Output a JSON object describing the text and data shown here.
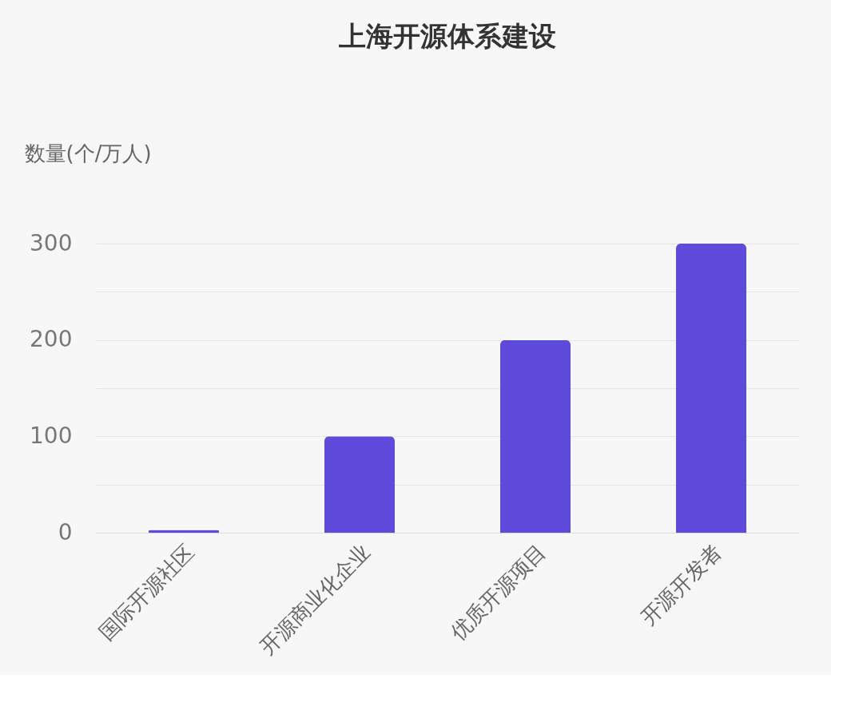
{
  "chart_data": {
    "type": "bar",
    "title": "上海开源体系建设",
    "ylabel": "数量(个/万人)",
    "categories": [
      "国际开源社区",
      "开源商业化企业",
      "优质开源项目",
      "开源开发者"
    ],
    "values": [
      3,
      100,
      200,
      300
    ],
    "color": "#5e4bdb",
    "ylim": [
      0,
      300
    ],
    "yticks": [
      0,
      {
        "value": 50,
        "label": null
      },
      100,
      {
        "value": 150,
        "label": null
      },
      200,
      {
        "value": 250,
        "label": null
      },
      300
    ],
    "grid": "y"
  }
}
